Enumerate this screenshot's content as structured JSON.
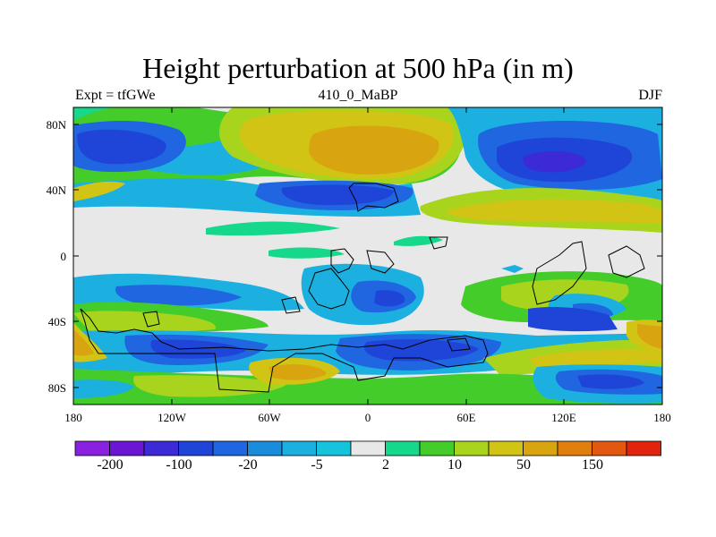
{
  "header": {
    "title": "Height perturbation at 500 hPa (in m)",
    "left_label": "Expt = tfGWe",
    "center_label": "410_0_MaBP",
    "right_label": "DJF"
  },
  "map": {
    "y_ticks": [
      "80N",
      "40N",
      "0",
      "40S",
      "80S"
    ],
    "x_ticks": [
      "180",
      "120W",
      "60W",
      "0",
      "60E",
      "120E",
      "180"
    ]
  },
  "colorbar": {
    "colors": [
      "#8a21e0",
      "#6a16d4",
      "#3b2ad6",
      "#1f44d8",
      "#1f66e0",
      "#1a8cdc",
      "#1cb0e0",
      "#15c4dc",
      "#e8e8e8",
      "#15d88a",
      "#44cc2a",
      "#a8d41e",
      "#d2c414",
      "#d8a410",
      "#e07e0e",
      "#e25810",
      "#e2240e"
    ],
    "labels": [
      "-200",
      "-100",
      "-20",
      "-5",
      "2",
      "10",
      "50",
      "150"
    ]
  },
  "colors": {
    "land_outline": "#000000",
    "background": "#e8e8e8"
  }
}
